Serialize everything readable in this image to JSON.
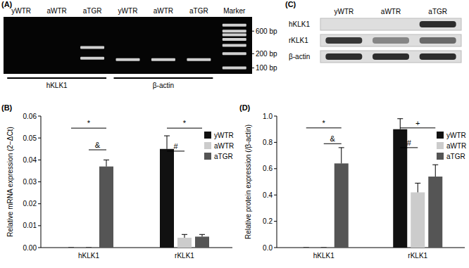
{
  "chart_data": [
    {
      "type": "gel",
      "label": "(A)",
      "lanes": [
        "yWTR",
        "aWTR",
        "aTGR",
        "yWTR",
        "aWTR",
        "aTGR",
        "Marker"
      ],
      "groups": [
        {
          "name": "hKLK1",
          "lanes": [
            0,
            2
          ]
        },
        {
          "name": "β-actin",
          "lanes": [
            3,
            5
          ]
        }
      ],
      "log": "y",
      "ylim": [
        1200,
        75
      ],
      "yticks": [
        {
          "value": 600,
          "label": "600 bp"
        },
        {
          "value": 200,
          "label": "200 bp"
        },
        {
          "value": 100,
          "label": "100 bp"
        }
      ],
      "bands": [
        {
          "lane": 2,
          "bp": 270
        },
        {
          "lane": 2,
          "bp": 160
        },
        {
          "lane": 3,
          "bp": 150
        },
        {
          "lane": 4,
          "bp": 150
        },
        {
          "lane": 5,
          "bp": 150
        },
        {
          "lane": 6,
          "bp": 100
        },
        {
          "lane": 6,
          "bp": 200
        },
        {
          "lane": 6,
          "bp": 300
        },
        {
          "lane": 6,
          "bp": 400
        },
        {
          "lane": 6,
          "bp": 500
        },
        {
          "lane": 6,
          "bp": 600
        },
        {
          "lane": 6,
          "bp": 800
        }
      ]
    },
    {
      "type": "bar",
      "label": "(B)",
      "categories": [
        "hKLK1",
        "rKLK1"
      ],
      "series": [
        {
          "name": "yWTR",
          "color": "#111111",
          "values": [
            0,
            0.045
          ],
          "errors": [
            0,
            0.006
          ]
        },
        {
          "name": "aWTR",
          "color": "#cccccc",
          "values": [
            0,
            0.0045
          ],
          "errors": [
            0,
            0.0015
          ]
        },
        {
          "name": "aTGR",
          "color": "#555555",
          "values": [
            0.037,
            0.005
          ],
          "errors": [
            0.003,
            0.001
          ]
        }
      ],
      "ylim": [
        0,
        0.06
      ],
      "yticks": [
        {
          "value": 0,
          "label": "0.00"
        },
        0.01,
        0.02,
        0.03,
        0.04,
        0.05,
        0.06
      ],
      "y_label": "Relative mRNA expression (2−ΔCt)",
      "legend": "top-right",
      "annotations": [
        {
          "text": "*",
          "category": 0,
          "from": 0,
          "to": 2,
          "y": 0.0545
        },
        {
          "text": "&",
          "category": 0,
          "from": 1,
          "to": 2,
          "y": 0.0446
        },
        {
          "text": "#",
          "category": 1,
          "from": 0,
          "to": 1,
          "y": 0.044
        },
        {
          "text": "*",
          "category": 1,
          "from": 0,
          "to": 2,
          "y": 0.0545
        }
      ]
    },
    {
      "type": "blot",
      "label": "(C)",
      "lanes": [
        "yWTR",
        "aWTR",
        "aTGR"
      ],
      "ylim": [
        0,
        1
      ],
      "rows": [
        {
          "name": "hKLK1",
          "values": [
            0,
            0,
            0.9
          ]
        },
        {
          "name": "rKLK1",
          "values": [
            0.85,
            0.45,
            0.6
          ]
        },
        {
          "name": "β-actin",
          "values": [
            0.9,
            0.9,
            0.9
          ]
        }
      ]
    },
    {
      "type": "bar",
      "label": "(D)",
      "categories": [
        "hKLK1",
        "rKLK1"
      ],
      "series": [
        {
          "name": "yWTR",
          "color": "#111111",
          "values": [
            0,
            0.9
          ],
          "errors": [
            0,
            0.08
          ]
        },
        {
          "name": "aWTR",
          "color": "#cccccc",
          "values": [
            0,
            0.42
          ],
          "errors": [
            0,
            0.07
          ]
        },
        {
          "name": "aTGR",
          "color": "#555555",
          "values": [
            0.64,
            0.54
          ],
          "errors": [
            0.12,
            0.09
          ]
        }
      ],
      "ylim": [
        0,
        1
      ],
      "yticks": [
        {
          "value": 0,
          "label": "0.0"
        },
        0.2,
        0.4,
        0.6,
        0.8,
        {
          "value": 1,
          "label": "1.0"
        }
      ],
      "y_label": "Relative protein expression (/β-actin)",
      "legend": "top-right",
      "annotations": [
        {
          "text": "*",
          "category": 0,
          "from": 0,
          "to": 2,
          "y": 0.91
        },
        {
          "text": "&",
          "category": 0,
          "from": 1,
          "to": 2,
          "y": 0.79
        },
        {
          "text": "#",
          "category": 1,
          "from": 0,
          "to": 1,
          "y": 0.76
        },
        {
          "text": "+",
          "category": 1,
          "from": 0,
          "to": 2,
          "y": 0.91
        }
      ]
    }
  ]
}
